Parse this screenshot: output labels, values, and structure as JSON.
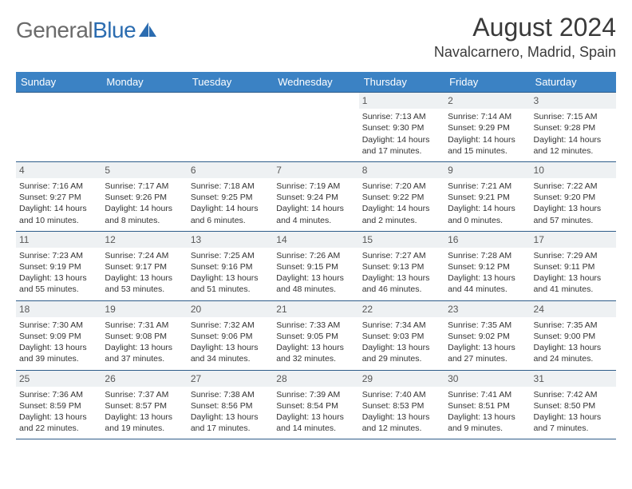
{
  "logo": {
    "name_general": "General",
    "name_blue": "Blue"
  },
  "title": "August 2024",
  "location": "Navalcarnero, Madrid, Spain",
  "colors": {
    "header_bg": "#3b82c4",
    "header_text": "#ffffff",
    "border": "#2f5d8a",
    "daynum_bg": "#eef1f3",
    "daynum_text": "#585858",
    "body_text": "#333333",
    "logo_gray": "#6a6a6a",
    "logo_blue": "#2b6cb0"
  },
  "day_headers": [
    "Sunday",
    "Monday",
    "Tuesday",
    "Wednesday",
    "Thursday",
    "Friday",
    "Saturday"
  ],
  "weeks": [
    [
      null,
      null,
      null,
      null,
      {
        "n": "1",
        "sr": "7:13 AM",
        "ss": "9:30 PM",
        "dl": "14 hours and 17 minutes."
      },
      {
        "n": "2",
        "sr": "7:14 AM",
        "ss": "9:29 PM",
        "dl": "14 hours and 15 minutes."
      },
      {
        "n": "3",
        "sr": "7:15 AM",
        "ss": "9:28 PM",
        "dl": "14 hours and 12 minutes."
      }
    ],
    [
      {
        "n": "4",
        "sr": "7:16 AM",
        "ss": "9:27 PM",
        "dl": "14 hours and 10 minutes."
      },
      {
        "n": "5",
        "sr": "7:17 AM",
        "ss": "9:26 PM",
        "dl": "14 hours and 8 minutes."
      },
      {
        "n": "6",
        "sr": "7:18 AM",
        "ss": "9:25 PM",
        "dl": "14 hours and 6 minutes."
      },
      {
        "n": "7",
        "sr": "7:19 AM",
        "ss": "9:24 PM",
        "dl": "14 hours and 4 minutes."
      },
      {
        "n": "8",
        "sr": "7:20 AM",
        "ss": "9:22 PM",
        "dl": "14 hours and 2 minutes."
      },
      {
        "n": "9",
        "sr": "7:21 AM",
        "ss": "9:21 PM",
        "dl": "14 hours and 0 minutes."
      },
      {
        "n": "10",
        "sr": "7:22 AM",
        "ss": "9:20 PM",
        "dl": "13 hours and 57 minutes."
      }
    ],
    [
      {
        "n": "11",
        "sr": "7:23 AM",
        "ss": "9:19 PM",
        "dl": "13 hours and 55 minutes."
      },
      {
        "n": "12",
        "sr": "7:24 AM",
        "ss": "9:17 PM",
        "dl": "13 hours and 53 minutes."
      },
      {
        "n": "13",
        "sr": "7:25 AM",
        "ss": "9:16 PM",
        "dl": "13 hours and 51 minutes."
      },
      {
        "n": "14",
        "sr": "7:26 AM",
        "ss": "9:15 PM",
        "dl": "13 hours and 48 minutes."
      },
      {
        "n": "15",
        "sr": "7:27 AM",
        "ss": "9:13 PM",
        "dl": "13 hours and 46 minutes."
      },
      {
        "n": "16",
        "sr": "7:28 AM",
        "ss": "9:12 PM",
        "dl": "13 hours and 44 minutes."
      },
      {
        "n": "17",
        "sr": "7:29 AM",
        "ss": "9:11 PM",
        "dl": "13 hours and 41 minutes."
      }
    ],
    [
      {
        "n": "18",
        "sr": "7:30 AM",
        "ss": "9:09 PM",
        "dl": "13 hours and 39 minutes."
      },
      {
        "n": "19",
        "sr": "7:31 AM",
        "ss": "9:08 PM",
        "dl": "13 hours and 37 minutes."
      },
      {
        "n": "20",
        "sr": "7:32 AM",
        "ss": "9:06 PM",
        "dl": "13 hours and 34 minutes."
      },
      {
        "n": "21",
        "sr": "7:33 AM",
        "ss": "9:05 PM",
        "dl": "13 hours and 32 minutes."
      },
      {
        "n": "22",
        "sr": "7:34 AM",
        "ss": "9:03 PM",
        "dl": "13 hours and 29 minutes."
      },
      {
        "n": "23",
        "sr": "7:35 AM",
        "ss": "9:02 PM",
        "dl": "13 hours and 27 minutes."
      },
      {
        "n": "24",
        "sr": "7:35 AM",
        "ss": "9:00 PM",
        "dl": "13 hours and 24 minutes."
      }
    ],
    [
      {
        "n": "25",
        "sr": "7:36 AM",
        "ss": "8:59 PM",
        "dl": "13 hours and 22 minutes."
      },
      {
        "n": "26",
        "sr": "7:37 AM",
        "ss": "8:57 PM",
        "dl": "13 hours and 19 minutes."
      },
      {
        "n": "27",
        "sr": "7:38 AM",
        "ss": "8:56 PM",
        "dl": "13 hours and 17 minutes."
      },
      {
        "n": "28",
        "sr": "7:39 AM",
        "ss": "8:54 PM",
        "dl": "13 hours and 14 minutes."
      },
      {
        "n": "29",
        "sr": "7:40 AM",
        "ss": "8:53 PM",
        "dl": "13 hours and 12 minutes."
      },
      {
        "n": "30",
        "sr": "7:41 AM",
        "ss": "8:51 PM",
        "dl": "13 hours and 9 minutes."
      },
      {
        "n": "31",
        "sr": "7:42 AM",
        "ss": "8:50 PM",
        "dl": "13 hours and 7 minutes."
      }
    ]
  ],
  "labels": {
    "sunrise": "Sunrise: ",
    "sunset": "Sunset: ",
    "daylight": "Daylight: "
  }
}
